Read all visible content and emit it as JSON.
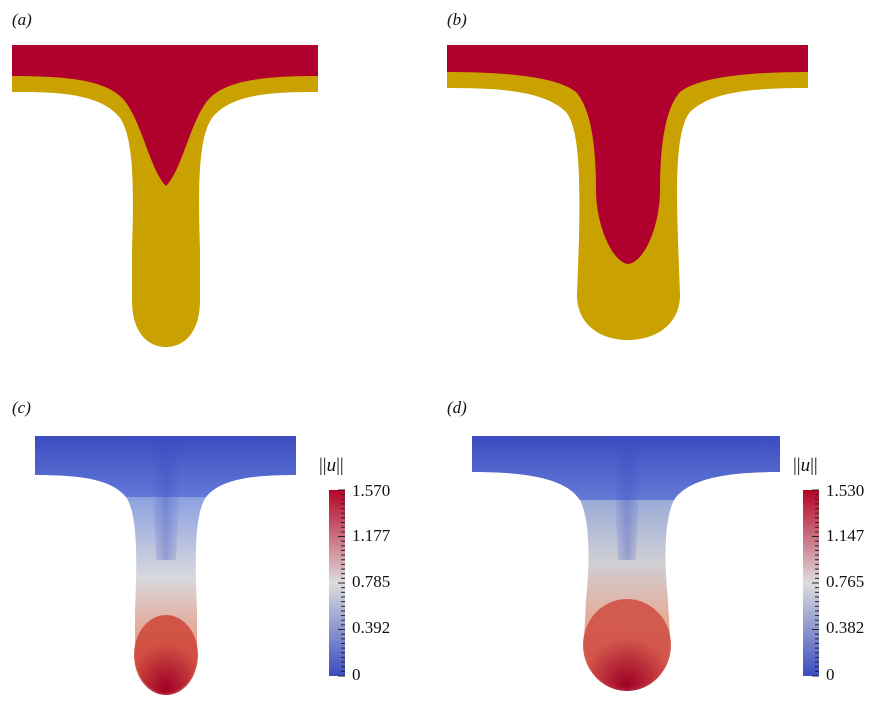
{
  "panels": {
    "a": {
      "label": "(a)"
    },
    "b": {
      "label": "(b)"
    },
    "c": {
      "label": "(c)",
      "colorbar": {
        "title_left": "||",
        "title_var": "u",
        "title_right": "||",
        "ticks": [
          "1.570",
          "1.177",
          "0.785",
          "0.392",
          "0"
        ]
      }
    },
    "d": {
      "label": "(d)",
      "colorbar": {
        "title_left": "||",
        "title_var": "u",
        "title_right": "||",
        "ticks": [
          "1.530",
          "1.147",
          "0.765",
          "0.382",
          "0"
        ]
      }
    }
  },
  "colors": {
    "phase_inner": "#b0002e",
    "phase_outer": "#c9a100",
    "cmap_low": "#3b4cc0",
    "cmap_mid": "#dddddd",
    "cmap_high": "#b40426",
    "cmap_dark": "#9e0025"
  }
}
